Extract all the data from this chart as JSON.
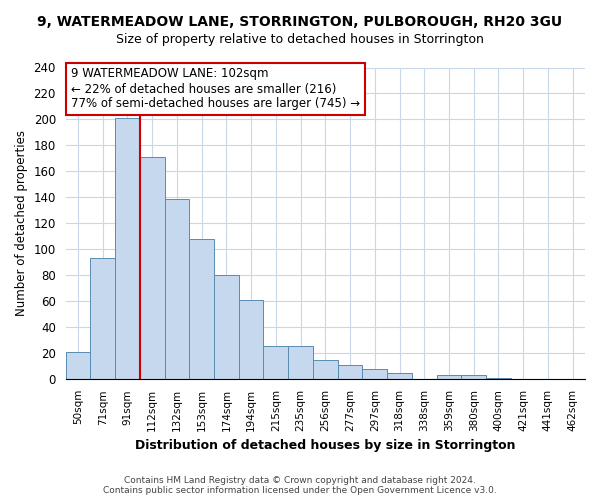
{
  "title": "9, WATERMEADOW LANE, STORRINGTON, PULBOROUGH, RH20 3GU",
  "subtitle": "Size of property relative to detached houses in Storrington",
  "xlabel": "Distribution of detached houses by size in Storrington",
  "ylabel": "Number of detached properties",
  "bar_labels": [
    "50sqm",
    "71sqm",
    "91sqm",
    "112sqm",
    "132sqm",
    "153sqm",
    "174sqm",
    "194sqm",
    "215sqm",
    "235sqm",
    "256sqm",
    "277sqm",
    "297sqm",
    "318sqm",
    "338sqm",
    "359sqm",
    "380sqm",
    "400sqm",
    "421sqm",
    "441sqm",
    "462sqm"
  ],
  "bar_values": [
    21,
    93,
    201,
    171,
    139,
    108,
    80,
    61,
    26,
    26,
    15,
    11,
    8,
    5,
    0,
    3,
    3,
    1,
    0,
    0,
    0
  ],
  "bar_color": "#c5d8ed",
  "bar_edge_color": "#5a8ab0",
  "vline_color": "#cc0000",
  "annotation_line1": "9 WATERMEADOW LANE: 102sqm",
  "annotation_line2": "← 22% of detached houses are smaller (216)",
  "annotation_line3": "77% of semi-detached houses are larger (745) →",
  "ylim": [
    0,
    240
  ],
  "yticks": [
    0,
    20,
    40,
    60,
    80,
    100,
    120,
    140,
    160,
    180,
    200,
    220,
    240
  ],
  "footer_line1": "Contains HM Land Registry data © Crown copyright and database right 2024.",
  "footer_line2": "Contains public sector information licensed under the Open Government Licence v3.0.",
  "bg_color": "#ffffff",
  "grid_color": "#c8d8e8"
}
